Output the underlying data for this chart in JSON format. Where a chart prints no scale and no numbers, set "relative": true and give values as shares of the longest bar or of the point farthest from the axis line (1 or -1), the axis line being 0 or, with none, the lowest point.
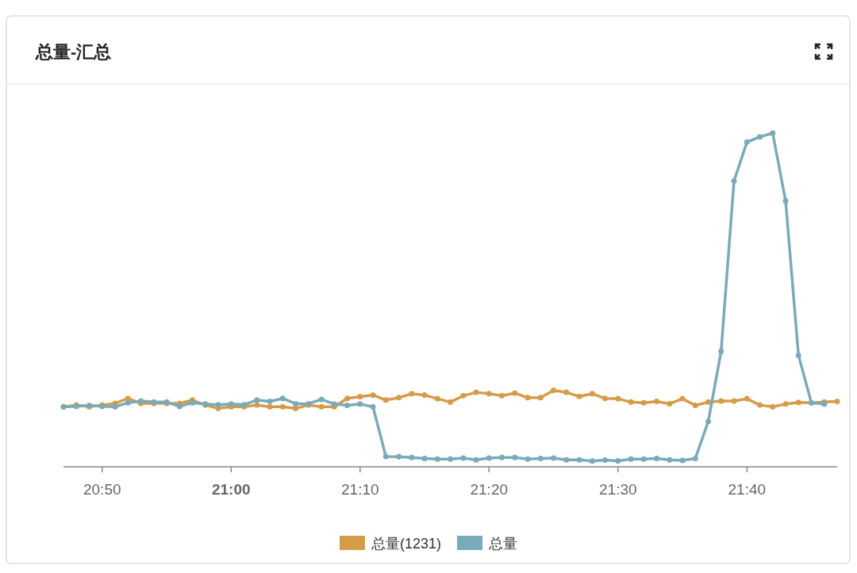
{
  "chart_data": {
    "type": "line",
    "title": "总量-汇总",
    "relative": true,
    "marker": "circle",
    "legend": "bottom",
    "x": [
      20.7833,
      20.8,
      20.8167,
      20.8333,
      20.85,
      20.8667,
      20.8833,
      20.9,
      20.9167,
      20.9333,
      20.95,
      20.9667,
      20.9833,
      21.0,
      21.0167,
      21.0333,
      21.05,
      21.0667,
      21.0833,
      21.1,
      21.1167,
      21.1333,
      21.15,
      21.1667,
      21.1833,
      21.2,
      21.2167,
      21.2333,
      21.25,
      21.2667,
      21.2833,
      21.3,
      21.3167,
      21.3333,
      21.35,
      21.3667,
      21.3833,
      21.4,
      21.4167,
      21.4333,
      21.45,
      21.4667,
      21.4833,
      21.5,
      21.5167,
      21.5333,
      21.55,
      21.5667,
      21.5833,
      21.6,
      21.6167,
      21.6333,
      21.65,
      21.6667,
      21.6833,
      21.7,
      21.7167,
      21.7333,
      21.75,
      21.7667,
      21.7833
    ],
    "xlim": [
      20.7833,
      21.7833
    ],
    "xticks": [
      {
        "value": 20.8333,
        "label": "20:50"
      },
      {
        "value": 21.0,
        "label": "21:00"
      },
      {
        "value": 21.1667,
        "label": "21:10"
      },
      {
        "value": 21.3333,
        "label": "21:20"
      },
      {
        "value": 21.5,
        "label": "21:30"
      },
      {
        "value": 21.6667,
        "label": "21:40"
      }
    ],
    "series": [
      {
        "name": "总量(1231)",
        "color": "#d49c48",
        "values": [
          0.18,
          0.185,
          0.18,
          0.185,
          0.19,
          0.205,
          0.19,
          0.19,
          0.19,
          0.19,
          0.2,
          0.185,
          0.175,
          0.18,
          0.18,
          0.185,
          0.18,
          0.18,
          0.175,
          0.185,
          0.18,
          0.18,
          0.205,
          0.21,
          0.215,
          0.2,
          0.207,
          0.219,
          0.215,
          0.204,
          0.194,
          0.213,
          0.223,
          0.219,
          0.213,
          0.221,
          0.207,
          0.207,
          0.229,
          0.223,
          0.211,
          0.219,
          0.205,
          0.204,
          0.194,
          0.192,
          0.196,
          0.189,
          0.204,
          0.184,
          0.194,
          0.197,
          0.197,
          0.204,
          0.185,
          0.18,
          0.188,
          0.193,
          0.192,
          0.194,
          0.196
        ]
      },
      {
        "name": "总量",
        "color": "#7aaab9",
        "values": [
          0.18,
          0.181,
          0.184,
          0.181,
          0.18,
          0.192,
          0.197,
          0.194,
          0.194,
          0.181,
          0.192,
          0.188,
          0.186,
          0.188,
          0.186,
          0.2,
          0.196,
          0.205,
          0.189,
          0.189,
          0.202,
          0.188,
          0.184,
          0.188,
          0.18,
          0.031,
          0.03,
          0.028,
          0.025,
          0.023,
          0.023,
          0.026,
          0.021,
          0.026,
          0.028,
          0.028,
          0.023,
          0.025,
          0.026,
          0.021,
          0.021,
          0.017,
          0.02,
          0.018,
          0.023,
          0.023,
          0.025,
          0.021,
          0.019,
          0.025,
          0.136,
          0.346,
          0.857,
          0.973,
          0.989,
          1.0,
          0.797,
          0.334,
          0.192,
          0.188,
          null
        ]
      }
    ]
  }
}
